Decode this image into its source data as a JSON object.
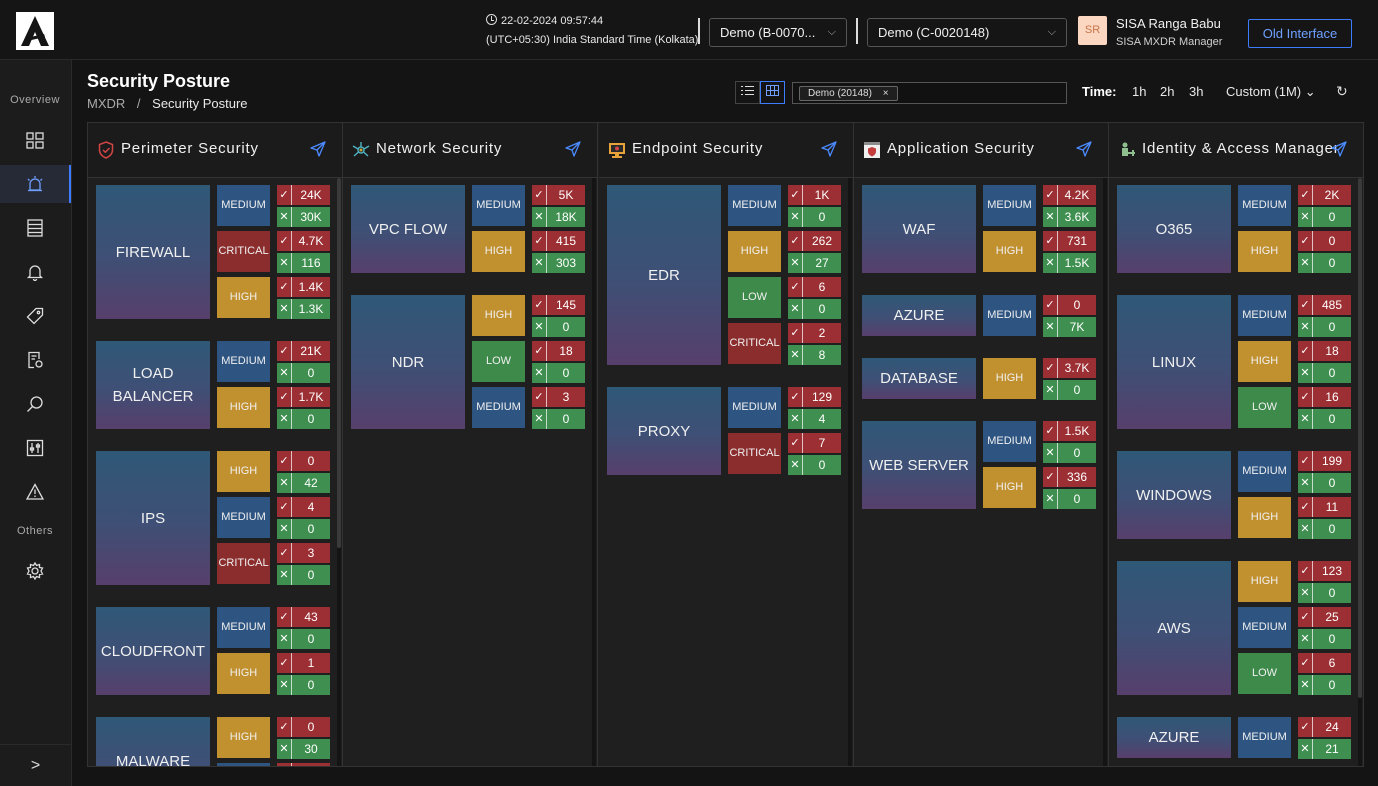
{
  "header": {
    "datetime": "22-02-2024 09:57:44",
    "timezone": "(UTC+05:30) India Standard Time (Kolkata)",
    "tenant1": "Demo (B-0070...",
    "tenant2": "Demo (C-0020148)",
    "avatar_initials": "SR",
    "user_name": "SISA Ranga Babu",
    "user_role": "SISA MXDR Manager",
    "old_interface": "Old Interface"
  },
  "sidebar": {
    "overview_label": "Overview",
    "others_label": "Others",
    "items": [
      "dashboard-icon",
      "alarm-icon",
      "list-icon",
      "bell-icon",
      "tag-icon",
      "report-icon",
      "search-icon",
      "sliders-icon",
      "warning-icon",
      "gear-icon"
    ],
    "expand": ">"
  },
  "page": {
    "title": "Security Posture",
    "breadcrumb_root": "MXDR",
    "breadcrumb_sep": "/",
    "breadcrumb_current": "Security Posture",
    "filter_chip": "Demo (20148)",
    "filter_chip_close": "×",
    "time_label": "Time:",
    "time_options": [
      "1h",
      "2h",
      "3h"
    ],
    "custom": "Custom (1M)",
    "custom_chevron": "⌄",
    "refresh": "↻"
  },
  "columns": [
    {
      "title": "Perimeter Security",
      "icon": "shield-icon",
      "groups": [
        {
          "name": "FIREWALL",
          "items": [
            {
              "sev": "MEDIUM",
              "ok": "24K",
              "no": "30K"
            },
            {
              "sev": "CRITICAL",
              "ok": "4.7K",
              "no": "116"
            },
            {
              "sev": "HIGH",
              "ok": "1.4K",
              "no": "1.3K"
            }
          ]
        },
        {
          "name": "LOAD BALANCER",
          "items": [
            {
              "sev": "MEDIUM",
              "ok": "21K",
              "no": "0"
            },
            {
              "sev": "HIGH",
              "ok": "1.7K",
              "no": "0"
            }
          ]
        },
        {
          "name": "IPS",
          "items": [
            {
              "sev": "HIGH",
              "ok": "0",
              "no": "42"
            },
            {
              "sev": "MEDIUM",
              "ok": "4",
              "no": "0"
            },
            {
              "sev": "CRITICAL",
              "ok": "3",
              "no": "0"
            }
          ]
        },
        {
          "name": "CLOUDFRONT",
          "items": [
            {
              "sev": "MEDIUM",
              "ok": "43",
              "no": "0"
            },
            {
              "sev": "HIGH",
              "ok": "1",
              "no": "0"
            }
          ]
        },
        {
          "name": "MALWARE",
          "items": [
            {
              "sev": "HIGH",
              "ok": "0",
              "no": "30"
            },
            {
              "sev": "MEDIUM",
              "ok": "",
              "no": ""
            }
          ]
        }
      ]
    },
    {
      "title": "Network Security",
      "icon": "network-icon",
      "groups": [
        {
          "name": "VPC FLOW",
          "items": [
            {
              "sev": "MEDIUM",
              "ok": "5K",
              "no": "18K"
            },
            {
              "sev": "HIGH",
              "ok": "415",
              "no": "303"
            }
          ]
        },
        {
          "name": "NDR",
          "items": [
            {
              "sev": "HIGH",
              "ok": "145",
              "no": "0"
            },
            {
              "sev": "LOW",
              "ok": "18",
              "no": "0"
            },
            {
              "sev": "MEDIUM",
              "ok": "3",
              "no": "0"
            }
          ]
        }
      ]
    },
    {
      "title": "Endpoint Security",
      "icon": "monitor-icon",
      "groups": [
        {
          "name": "EDR",
          "items": [
            {
              "sev": "MEDIUM",
              "ok": "1K",
              "no": "0"
            },
            {
              "sev": "HIGH",
              "ok": "262",
              "no": "27"
            },
            {
              "sev": "LOW",
              "ok": "6",
              "no": "0"
            },
            {
              "sev": "CRITICAL",
              "ok": "2",
              "no": "8"
            }
          ]
        },
        {
          "name": "PROXY",
          "items": [
            {
              "sev": "MEDIUM",
              "ok": "129",
              "no": "4"
            },
            {
              "sev": "CRITICAL",
              "ok": "7",
              "no": "0"
            }
          ]
        }
      ]
    },
    {
      "title": "Application Security",
      "icon": "app-icon",
      "groups": [
        {
          "name": "WAF",
          "items": [
            {
              "sev": "MEDIUM",
              "ok": "4.2K",
              "no": "3.6K"
            },
            {
              "sev": "HIGH",
              "ok": "731",
              "no": "1.5K"
            }
          ]
        },
        {
          "name": "AZURE",
          "items": [
            {
              "sev": "MEDIUM",
              "ok": "0",
              "no": "7K"
            }
          ]
        },
        {
          "name": "DATABASE",
          "items": [
            {
              "sev": "HIGH",
              "ok": "3.7K",
              "no": "0"
            }
          ]
        },
        {
          "name": "WEB SERVER",
          "items": [
            {
              "sev": "MEDIUM",
              "ok": "1.5K",
              "no": "0"
            },
            {
              "sev": "HIGH",
              "ok": "336",
              "no": "0"
            }
          ]
        }
      ]
    },
    {
      "title": "Identity & Access Management",
      "icon": "identity-icon",
      "groups": [
        {
          "name": "O365",
          "items": [
            {
              "sev": "MEDIUM",
              "ok": "2K",
              "no": "0"
            },
            {
              "sev": "HIGH",
              "ok": "0",
              "no": "0"
            }
          ]
        },
        {
          "name": "LINUX",
          "items": [
            {
              "sev": "MEDIUM",
              "ok": "485",
              "no": "0"
            },
            {
              "sev": "HIGH",
              "ok": "18",
              "no": "0"
            },
            {
              "sev": "LOW",
              "ok": "16",
              "no": "0"
            }
          ]
        },
        {
          "name": "WINDOWS",
          "items": [
            {
              "sev": "MEDIUM",
              "ok": "199",
              "no": "0"
            },
            {
              "sev": "HIGH",
              "ok": "11",
              "no": "0"
            }
          ]
        },
        {
          "name": "AWS",
          "items": [
            {
              "sev": "HIGH",
              "ok": "123",
              "no": "0"
            },
            {
              "sev": "MEDIUM",
              "ok": "25",
              "no": "0"
            },
            {
              "sev": "LOW",
              "ok": "6",
              "no": "0"
            }
          ]
        },
        {
          "name": "AZURE",
          "items": [
            {
              "sev": "MEDIUM",
              "ok": "24",
              "no": "21"
            }
          ]
        }
      ]
    }
  ],
  "glyphs": {
    "ok": "✓",
    "no": "✕"
  },
  "colors": {
    "medium": "#2e5582",
    "high": "#c1902f",
    "critical": "#8b2d2d",
    "low": "#3d8a4a",
    "ok_bg": "#9c2f33",
    "no_bg": "#3f9050",
    "accent": "#3d7bff"
  }
}
